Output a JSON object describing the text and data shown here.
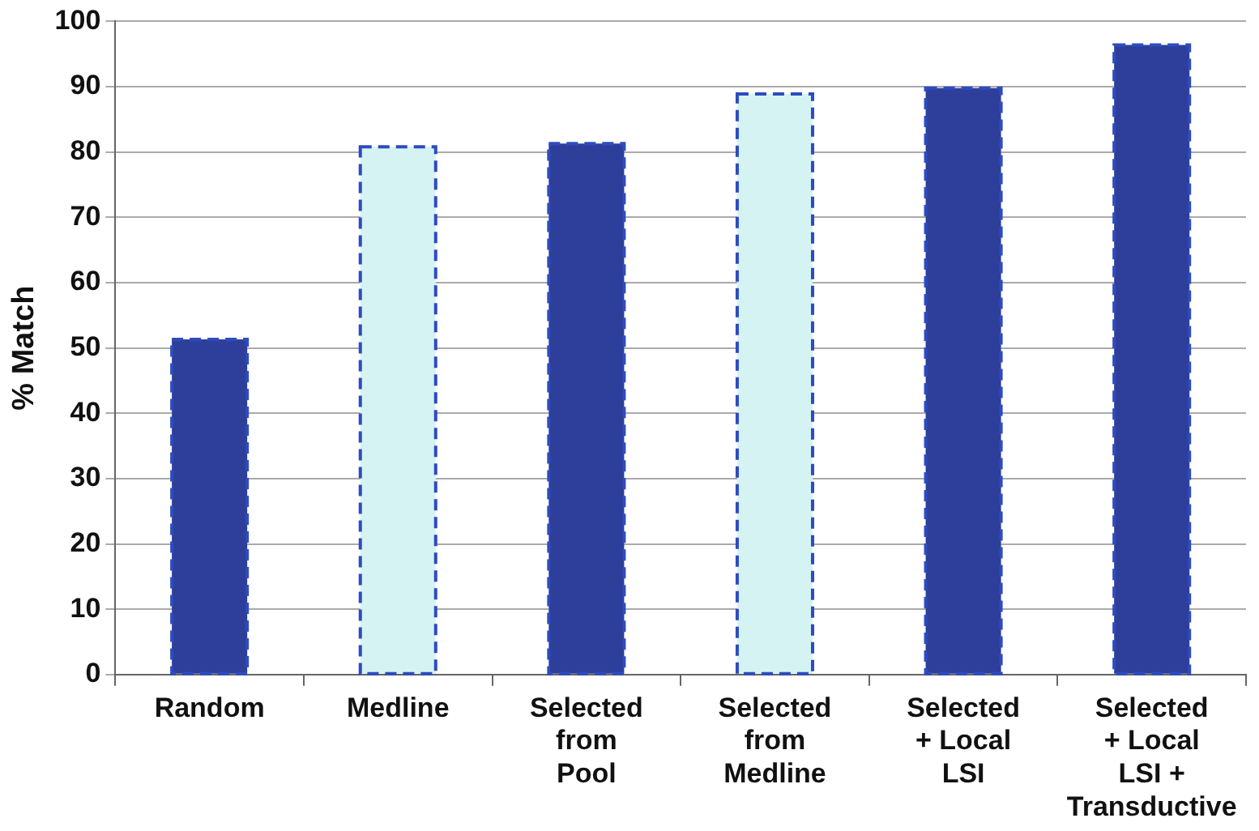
{
  "chart_data": {
    "type": "bar",
    "ylabel": "% Match",
    "categories": [
      "Random",
      "Medline",
      "Selected\nfrom\nPool",
      "Selected\nfrom\nMedline",
      "Selected\n+ Local\nLSI",
      "Selected\n+ Local\nLSI +\nTransductive"
    ],
    "values": [
      51.3,
      80.8,
      81.3,
      88.9,
      89.8,
      96.4
    ],
    "colors": [
      "#2e3f9b",
      "#d6f3f3",
      "#2e3f9b",
      "#d6f3f3",
      "#2e3f9b",
      "#2e3f9b"
    ],
    "ylim": [
      0,
      100
    ],
    "yticks": [
      0,
      10,
      20,
      30,
      40,
      50,
      60,
      70,
      80,
      90,
      100
    ],
    "grid": "y",
    "legend": false
  }
}
